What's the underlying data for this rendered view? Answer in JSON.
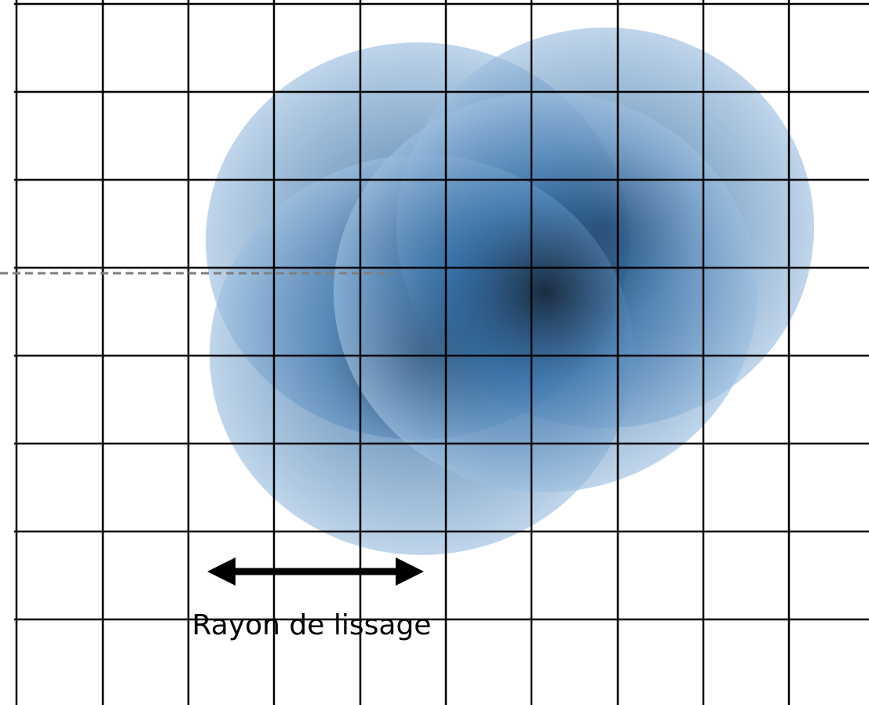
{
  "label": "Rayon de lissage"
}
